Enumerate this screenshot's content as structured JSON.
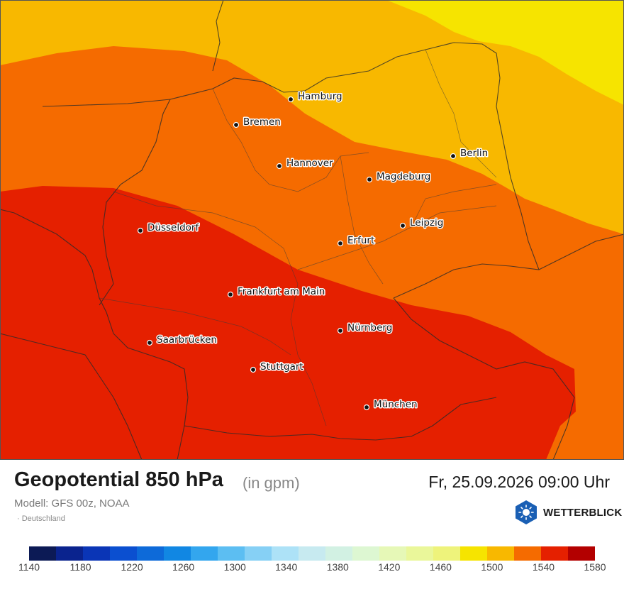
{
  "title": "Geopotential 850 hPa",
  "unit": "(in gpm)",
  "model": "Modell: GFS 00z, NOAA",
  "region": "Deutschland",
  "datetime": "Fr, 25.09.2026 09:00 Uhr",
  "brand": "WETTERBLICK",
  "cities": [
    {
      "name": "Hamburg"
    },
    {
      "name": "Bremen"
    },
    {
      "name": "Berlin"
    },
    {
      "name": "Hannover"
    },
    {
      "name": "Magdeburg"
    },
    {
      "name": "Düsseldorf"
    },
    {
      "name": "Leipzig"
    },
    {
      "name": "Erfurt"
    },
    {
      "name": "Frankfurt am Main"
    },
    {
      "name": "Nürnberg"
    },
    {
      "name": "Saarbrücken"
    },
    {
      "name": "Stuttgart"
    },
    {
      "name": "München"
    }
  ],
  "scale": {
    "ticks": [
      "1140",
      "1180",
      "1220",
      "1260",
      "1300",
      "1340",
      "1380",
      "1420",
      "1460",
      "1500",
      "1540",
      "1580"
    ],
    "colors": [
      "#0c1a55",
      "#0a238e",
      "#0a35b6",
      "#0b4fd0",
      "#0d6ad9",
      "#1187e3",
      "#33a6ee",
      "#5cbef2",
      "#86d0f5",
      "#ade2f7",
      "#c7eaf0",
      "#d2f1e3",
      "#ddf7d2",
      "#e6f8b7",
      "#eaf79a",
      "#eef37b",
      "#f6e400",
      "#f8b800",
      "#f56b00",
      "#e52000",
      "#b30000"
    ]
  }
}
